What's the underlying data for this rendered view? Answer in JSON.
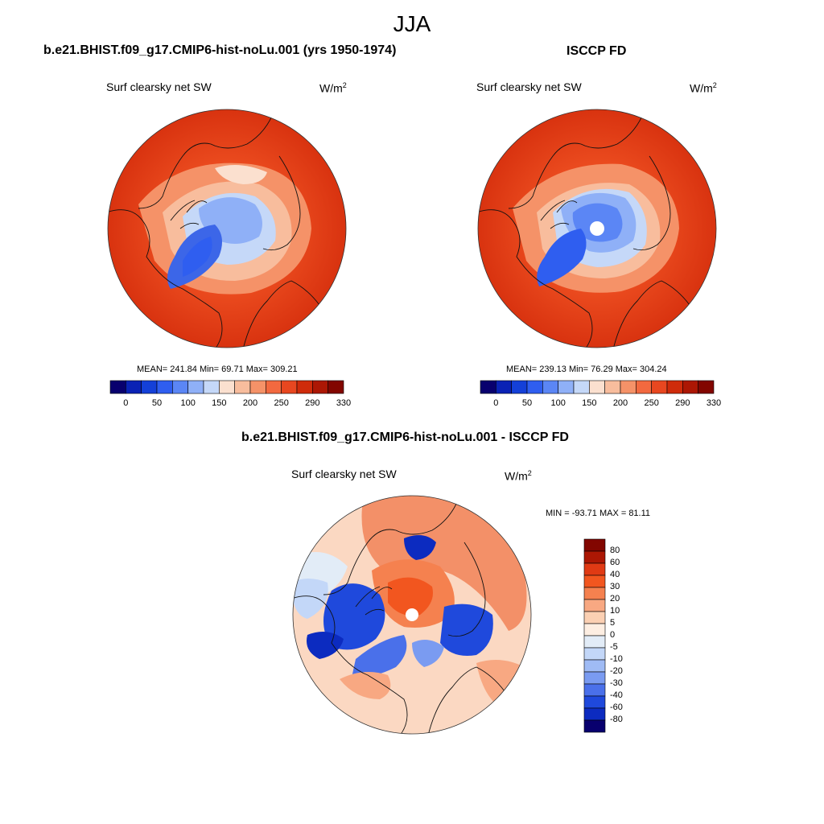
{
  "figure": {
    "season": "JJA",
    "variable": "Surf clearsky net SW",
    "units": {
      "base": "W/m",
      "sup": "2"
    }
  },
  "panels": [
    {
      "id": "model",
      "title": "b.e21.BHIST.f09_g17.CMIP6-hist-noLu.001 (yrs 1950-1974)",
      "stats": "MEAN= 241.84  Min=  69.71  Max= 309.21"
    },
    {
      "id": "obs",
      "title": "ISCCP FD",
      "stats": "MEAN= 239.13  Min=  76.29  Max= 304.24"
    },
    {
      "id": "diff",
      "title": "b.e21.BHIST.f09_g17.CMIP6-hist-noLu.001 - ISCCP FD",
      "stats": "MIN = -93.71 MAX =  81.11"
    }
  ],
  "colorbar_abs": {
    "labels": [
      "0",
      "50",
      "100",
      "150",
      "200",
      "250",
      "290",
      "330"
    ],
    "colors": [
      "#08006e",
      "#0a22b5",
      "#1440d8",
      "#2f5ef0",
      "#5b86f5",
      "#8fb0f7",
      "#c5d8f8",
      "#fbe0cf",
      "#f8bd9d",
      "#f59268",
      "#f2693f",
      "#e84720",
      "#cf2b0b",
      "#ac1704",
      "#820600"
    ]
  },
  "colorbar_diff": {
    "labels": [
      "80",
      "60",
      "40",
      "30",
      "20",
      "10",
      "5",
      "0",
      "-5",
      "-10",
      "-20",
      "-30",
      "-40",
      "-60",
      "-80"
    ],
    "colors": [
      "#820600",
      "#ac1704",
      "#e03a14",
      "#f2561f",
      "#f5814f",
      "#f8a882",
      "#fbd0b3",
      "#fdeee2",
      "#e2ecf7",
      "#c3d7f8",
      "#9fbbf5",
      "#7a9bf1",
      "#4a70ea",
      "#1f49dc",
      "#0c2bc0",
      "#08006e"
    ]
  },
  "colors": {
    "ocean_warm": "#ea4a1e",
    "subtropic_warm": "#dc3612",
    "land_warm": "#f2693f",
    "ice_blue": "#8fb0f7",
    "ice_deep": "#4a70ea",
    "greenland": "#3c66e8",
    "diff_pos": "#f39068",
    "diff_light": "#fbd8c2",
    "diff_neg": "#1f49dc"
  }
}
